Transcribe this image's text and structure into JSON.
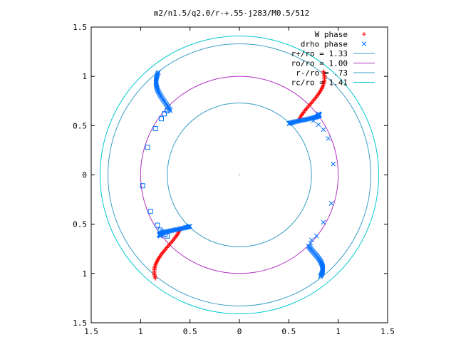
{
  "chart_data": {
    "type": "scatter",
    "title": "m2/n1.5/q2.0/r-+.55-j283/M0.5/512",
    "xlabel": "",
    "ylabel": "",
    "xlim": [
      -1.5,
      1.5
    ],
    "ylim": [
      -1.5,
      1.5
    ],
    "x_ticks": [
      "1.5",
      "1",
      "0.5",
      "0",
      "0.5",
      "1",
      "1.5"
    ],
    "y_ticks": [
      "1.5",
      "1",
      "0.5",
      "0",
      "0.5",
      "1",
      "1.5"
    ],
    "grid": false,
    "legend_position": "top-right",
    "series": [
      {
        "name": "W phase",
        "marker": "plus",
        "color": "#ff0000",
        "arms": [
          {
            "x_start": 0.6,
            "y_start": 0.55,
            "x_end": 0.85,
            "y_end": 1.05
          },
          {
            "x_start": -0.6,
            "y_start": -0.55,
            "x_end": -0.85,
            "y_end": -1.05
          }
        ]
      },
      {
        "name": "drho phase",
        "marker": "cross",
        "color": "#0070ff",
        "arms": [
          {
            "x_start": 0.5,
            "y_start": 0.52,
            "x_end": 0.8,
            "y_end": 0.62
          },
          {
            "x_start": -0.5,
            "y_start": -0.52,
            "x_end": -0.8,
            "y_end": -0.62
          },
          {
            "x_start": -0.7,
            "y_start": 0.65,
            "x_end": -0.82,
            "y_end": 1.04
          },
          {
            "x_start": 0.7,
            "y_start": -0.72,
            "x_end": 0.82,
            "y_end": -1.03
          }
        ],
        "scatter": [
          {
            "x": 0.75,
            "y": 0.55
          },
          {
            "x": 0.8,
            "y": 0.51
          },
          {
            "x": 0.85,
            "y": 0.46
          },
          {
            "x": 0.9,
            "y": 0.37
          },
          {
            "x": 0.95,
            "y": 0.11
          },
          {
            "x": 0.93,
            "y": -0.29
          },
          {
            "x": 0.85,
            "y": -0.48
          },
          {
            "x": 0.78,
            "y": -0.62
          },
          {
            "x": 0.73,
            "y": -0.66
          },
          {
            "x": 0.72,
            "y": -0.69
          }
        ]
      },
      {
        "name": "",
        "marker": "square",
        "color": "#0070ff",
        "scatter": [
          {
            "x": -0.73,
            "y": 0.65
          },
          {
            "x": -0.76,
            "y": 0.62
          },
          {
            "x": -0.79,
            "y": 0.57
          },
          {
            "x": -0.85,
            "y": 0.47
          },
          {
            "x": -0.93,
            "y": 0.28
          },
          {
            "x": -0.98,
            "y": -0.11
          },
          {
            "x": -0.9,
            "y": -0.37
          },
          {
            "x": -0.83,
            "y": -0.51
          },
          {
            "x": -0.8,
            "y": -0.56
          },
          {
            "x": -0.78,
            "y": -0.58
          },
          {
            "x": -0.75,
            "y": -0.6
          },
          {
            "x": -0.73,
            "y": -0.62
          }
        ]
      },
      {
        "name": "r+/ro = 1.33",
        "type": "circle",
        "radius": 1.33,
        "color": "#3a9ec8"
      },
      {
        "name": "ro/ro = 1.00",
        "type": "circle",
        "radius": 1.0,
        "color": "#b030c0"
      },
      {
        "name": "r-/ro = .73",
        "type": "circle",
        "radius": 0.73,
        "color": "#3a9ec8"
      },
      {
        "name": "rc/ro = 1.41",
        "type": "circle",
        "radius": 1.41,
        "color": "#00c8d0"
      }
    ]
  }
}
